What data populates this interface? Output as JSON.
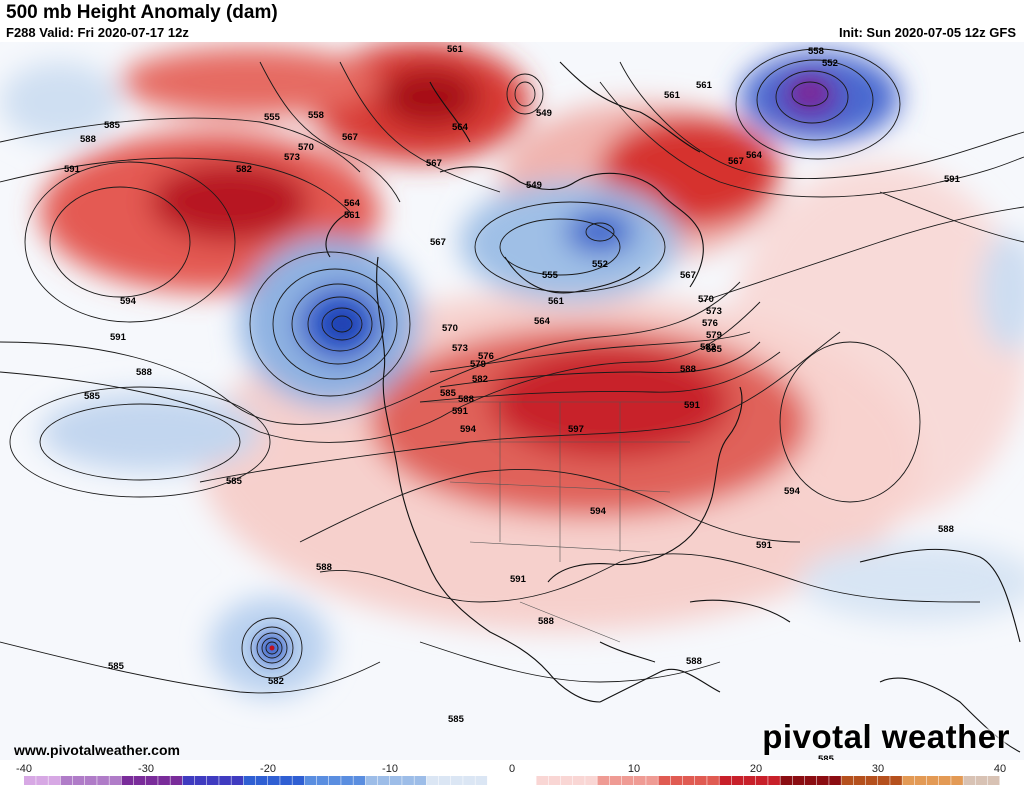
{
  "header": {
    "title": "500 mb Height Anomaly (dam)",
    "valid": "F288 Valid: Fri 2020-07-17 12z",
    "init": "Init: Sun 2020-07-05 12z GFS"
  },
  "footer": {
    "website": "www.pivotalweather.com",
    "brand": "pivotal weather"
  },
  "colorbar": {
    "ticks": [
      "-40",
      "-30",
      "-20",
      "-10",
      "0",
      "10",
      "20",
      "30",
      "40"
    ],
    "colors": [
      "#d7a8e4",
      "#b07cc8",
      "#7a2c9a",
      "#3f3bc0",
      "#2f5fd3",
      "#5a8ee0",
      "#9dbde8",
      "#dbe6f4",
      "#ffffff",
      "#f9d6d4",
      "#ef9b94",
      "#e05b52",
      "#c8202a",
      "#8b0d12",
      "#b5501d",
      "#e39a55",
      "#d8c2b4"
    ]
  },
  "contour_labels": [
    "561",
    "558",
    "552",
    "555",
    "558",
    "564",
    "567",
    "570",
    "573",
    "582",
    "585",
    "588",
    "591",
    "594",
    "597",
    "549",
    "576",
    "579"
  ]
}
